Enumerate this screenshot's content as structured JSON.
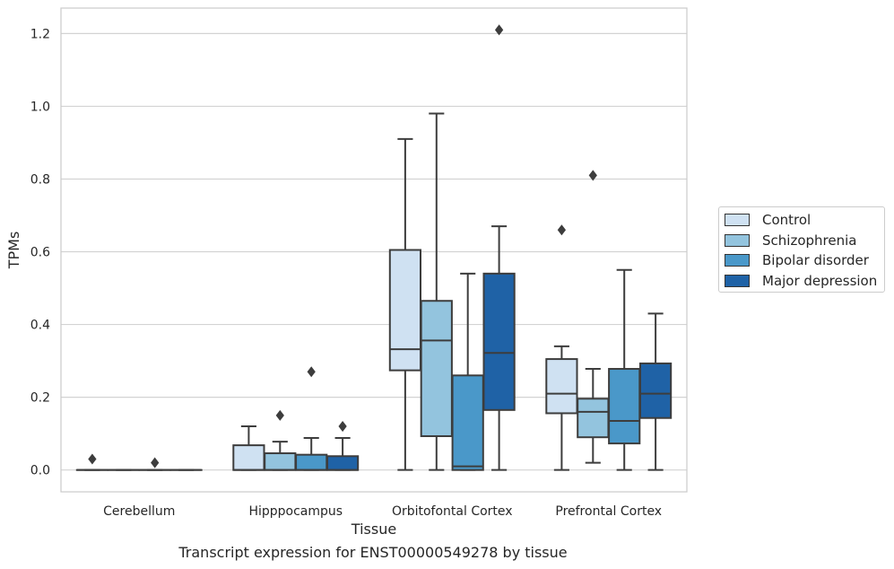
{
  "caption": "Transcript expression for ENST00000549278 by tissue",
  "chart_data": {
    "type": "box",
    "xlabel": "Tissue",
    "ylabel": "TPMs",
    "ylim": [
      -0.06,
      1.27
    ],
    "yticks": [
      0.0,
      0.2,
      0.4,
      0.6,
      0.8,
      1.0,
      1.2
    ],
    "ytick_labels": [
      "0.0",
      "0.2",
      "0.4",
      "0.6",
      "0.8",
      "1.0",
      "1.2"
    ],
    "grid": true,
    "legend_position": "right",
    "categories": [
      "Cerebellum",
      "Hipppocampus",
      "Orbitofontal Cortex",
      "Prefrontal Cortex"
    ],
    "series": [
      {
        "name": "Control",
        "color": "#cfe1f2",
        "boxes": [
          {
            "whislo": 0.0,
            "q1": 0.0,
            "med": 0.0,
            "q3": 0.0,
            "whishi": 0.0,
            "fliers": [
              0.03
            ]
          },
          {
            "whislo": 0.0,
            "q1": 0.0,
            "med": 0.0,
            "q3": 0.068,
            "whishi": 0.12,
            "fliers": []
          },
          {
            "whislo": 0.0,
            "q1": 0.274,
            "med": 0.332,
            "q3": 0.605,
            "whishi": 0.91,
            "fliers": []
          },
          {
            "whislo": 0.0,
            "q1": 0.156,
            "med": 0.21,
            "q3": 0.305,
            "whishi": 0.34,
            "fliers": [
              0.66
            ]
          }
        ]
      },
      {
        "name": "Schizophrenia",
        "color": "#93c4de",
        "boxes": [
          {
            "whislo": 0.0,
            "q1": 0.0,
            "med": 0.0,
            "q3": 0.0,
            "whishi": 0.0,
            "fliers": []
          },
          {
            "whislo": 0.0,
            "q1": 0.0,
            "med": 0.0,
            "q3": 0.046,
            "whishi": 0.078,
            "fliers": [
              0.15
            ]
          },
          {
            "whislo": 0.0,
            "q1": 0.093,
            "med": 0.356,
            "q3": 0.465,
            "whishi": 0.98,
            "fliers": []
          },
          {
            "whislo": 0.02,
            "q1": 0.09,
            "med": 0.16,
            "q3": 0.196,
            "whishi": 0.278,
            "fliers": [
              0.81
            ]
          }
        ]
      },
      {
        "name": "Bipolar disorder",
        "color": "#4a98c9",
        "boxes": [
          {
            "whislo": 0.0,
            "q1": 0.0,
            "med": 0.0,
            "q3": 0.0,
            "whishi": 0.0,
            "fliers": [
              0.02
            ]
          },
          {
            "whislo": 0.0,
            "q1": 0.0,
            "med": 0.0,
            "q3": 0.042,
            "whishi": 0.088,
            "fliers": [
              0.27
            ]
          },
          {
            "whislo": 0.0,
            "q1": 0.0,
            "med": 0.01,
            "q3": 0.26,
            "whishi": 0.54,
            "fliers": []
          },
          {
            "whislo": 0.0,
            "q1": 0.073,
            "med": 0.135,
            "q3": 0.278,
            "whishi": 0.55,
            "fliers": []
          }
        ]
      },
      {
        "name": "Major depression",
        "color": "#1f62a6",
        "boxes": [
          {
            "whislo": 0.0,
            "q1": 0.0,
            "med": 0.0,
            "q3": 0.0,
            "whishi": 0.0,
            "fliers": []
          },
          {
            "whislo": 0.0,
            "q1": 0.0,
            "med": 0.0,
            "q3": 0.038,
            "whishi": 0.088,
            "fliers": [
              0.12
            ]
          },
          {
            "whislo": 0.0,
            "q1": 0.165,
            "med": 0.322,
            "q3": 0.54,
            "whishi": 0.67,
            "fliers": [
              1.21
            ]
          },
          {
            "whislo": 0.0,
            "q1": 0.143,
            "med": 0.21,
            "q3": 0.293,
            "whishi": 0.43,
            "fliers": []
          }
        ]
      }
    ]
  }
}
